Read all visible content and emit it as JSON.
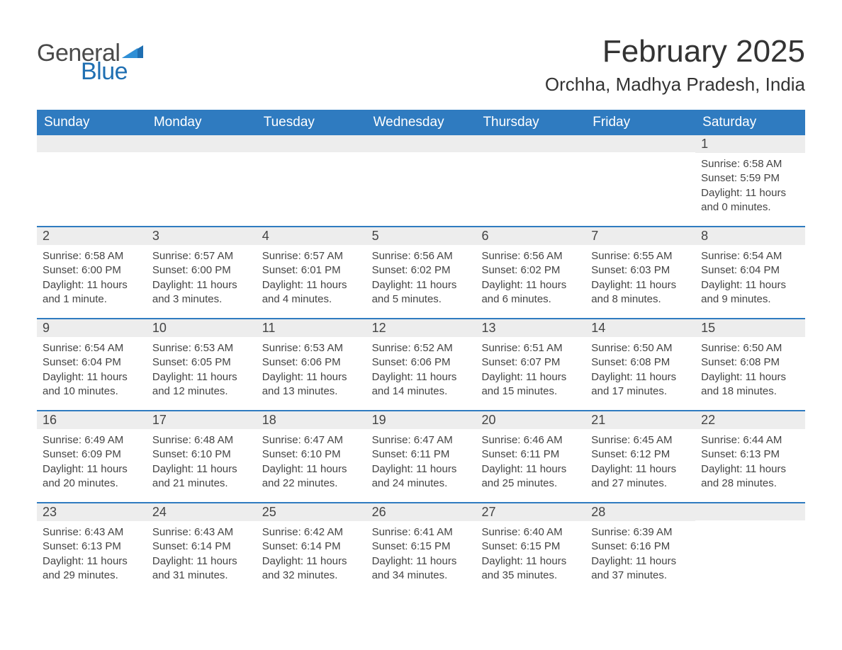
{
  "logo": {
    "text1": "General",
    "text2": "Blue",
    "accent_color": "#1f6fb2",
    "text_color": "#4a4a4a"
  },
  "title": "February 2025",
  "location": "Orchha, Madhya Pradesh, India",
  "colors": {
    "header_bg": "#2f7bc0",
    "header_text": "#ffffff",
    "daynum_bg": "#ededed",
    "body_text": "#444444",
    "rule": "#2f7bc0"
  },
  "weekdays": [
    "Sunday",
    "Monday",
    "Tuesday",
    "Wednesday",
    "Thursday",
    "Friday",
    "Saturday"
  ],
  "weeks": [
    [
      null,
      null,
      null,
      null,
      null,
      null,
      {
        "n": "1",
        "sunrise": "Sunrise: 6:58 AM",
        "sunset": "Sunset: 5:59 PM",
        "daylight": "Daylight: 11 hours and 0 minutes."
      }
    ],
    [
      {
        "n": "2",
        "sunrise": "Sunrise: 6:58 AM",
        "sunset": "Sunset: 6:00 PM",
        "daylight": "Daylight: 11 hours and 1 minute."
      },
      {
        "n": "3",
        "sunrise": "Sunrise: 6:57 AM",
        "sunset": "Sunset: 6:00 PM",
        "daylight": "Daylight: 11 hours and 3 minutes."
      },
      {
        "n": "4",
        "sunrise": "Sunrise: 6:57 AM",
        "sunset": "Sunset: 6:01 PM",
        "daylight": "Daylight: 11 hours and 4 minutes."
      },
      {
        "n": "5",
        "sunrise": "Sunrise: 6:56 AM",
        "sunset": "Sunset: 6:02 PM",
        "daylight": "Daylight: 11 hours and 5 minutes."
      },
      {
        "n": "6",
        "sunrise": "Sunrise: 6:56 AM",
        "sunset": "Sunset: 6:02 PM",
        "daylight": "Daylight: 11 hours and 6 minutes."
      },
      {
        "n": "7",
        "sunrise": "Sunrise: 6:55 AM",
        "sunset": "Sunset: 6:03 PM",
        "daylight": "Daylight: 11 hours and 8 minutes."
      },
      {
        "n": "8",
        "sunrise": "Sunrise: 6:54 AM",
        "sunset": "Sunset: 6:04 PM",
        "daylight": "Daylight: 11 hours and 9 minutes."
      }
    ],
    [
      {
        "n": "9",
        "sunrise": "Sunrise: 6:54 AM",
        "sunset": "Sunset: 6:04 PM",
        "daylight": "Daylight: 11 hours and 10 minutes."
      },
      {
        "n": "10",
        "sunrise": "Sunrise: 6:53 AM",
        "sunset": "Sunset: 6:05 PM",
        "daylight": "Daylight: 11 hours and 12 minutes."
      },
      {
        "n": "11",
        "sunrise": "Sunrise: 6:53 AM",
        "sunset": "Sunset: 6:06 PM",
        "daylight": "Daylight: 11 hours and 13 minutes."
      },
      {
        "n": "12",
        "sunrise": "Sunrise: 6:52 AM",
        "sunset": "Sunset: 6:06 PM",
        "daylight": "Daylight: 11 hours and 14 minutes."
      },
      {
        "n": "13",
        "sunrise": "Sunrise: 6:51 AM",
        "sunset": "Sunset: 6:07 PM",
        "daylight": "Daylight: 11 hours and 15 minutes."
      },
      {
        "n": "14",
        "sunrise": "Sunrise: 6:50 AM",
        "sunset": "Sunset: 6:08 PM",
        "daylight": "Daylight: 11 hours and 17 minutes."
      },
      {
        "n": "15",
        "sunrise": "Sunrise: 6:50 AM",
        "sunset": "Sunset: 6:08 PM",
        "daylight": "Daylight: 11 hours and 18 minutes."
      }
    ],
    [
      {
        "n": "16",
        "sunrise": "Sunrise: 6:49 AM",
        "sunset": "Sunset: 6:09 PM",
        "daylight": "Daylight: 11 hours and 20 minutes."
      },
      {
        "n": "17",
        "sunrise": "Sunrise: 6:48 AM",
        "sunset": "Sunset: 6:10 PM",
        "daylight": "Daylight: 11 hours and 21 minutes."
      },
      {
        "n": "18",
        "sunrise": "Sunrise: 6:47 AM",
        "sunset": "Sunset: 6:10 PM",
        "daylight": "Daylight: 11 hours and 22 minutes."
      },
      {
        "n": "19",
        "sunrise": "Sunrise: 6:47 AM",
        "sunset": "Sunset: 6:11 PM",
        "daylight": "Daylight: 11 hours and 24 minutes."
      },
      {
        "n": "20",
        "sunrise": "Sunrise: 6:46 AM",
        "sunset": "Sunset: 6:11 PM",
        "daylight": "Daylight: 11 hours and 25 minutes."
      },
      {
        "n": "21",
        "sunrise": "Sunrise: 6:45 AM",
        "sunset": "Sunset: 6:12 PM",
        "daylight": "Daylight: 11 hours and 27 minutes."
      },
      {
        "n": "22",
        "sunrise": "Sunrise: 6:44 AM",
        "sunset": "Sunset: 6:13 PM",
        "daylight": "Daylight: 11 hours and 28 minutes."
      }
    ],
    [
      {
        "n": "23",
        "sunrise": "Sunrise: 6:43 AM",
        "sunset": "Sunset: 6:13 PM",
        "daylight": "Daylight: 11 hours and 29 minutes."
      },
      {
        "n": "24",
        "sunrise": "Sunrise: 6:43 AM",
        "sunset": "Sunset: 6:14 PM",
        "daylight": "Daylight: 11 hours and 31 minutes."
      },
      {
        "n": "25",
        "sunrise": "Sunrise: 6:42 AM",
        "sunset": "Sunset: 6:14 PM",
        "daylight": "Daylight: 11 hours and 32 minutes."
      },
      {
        "n": "26",
        "sunrise": "Sunrise: 6:41 AM",
        "sunset": "Sunset: 6:15 PM",
        "daylight": "Daylight: 11 hours and 34 minutes."
      },
      {
        "n": "27",
        "sunrise": "Sunrise: 6:40 AM",
        "sunset": "Sunset: 6:15 PM",
        "daylight": "Daylight: 11 hours and 35 minutes."
      },
      {
        "n": "28",
        "sunrise": "Sunrise: 6:39 AM",
        "sunset": "Sunset: 6:16 PM",
        "daylight": "Daylight: 11 hours and 37 minutes."
      },
      null
    ]
  ]
}
